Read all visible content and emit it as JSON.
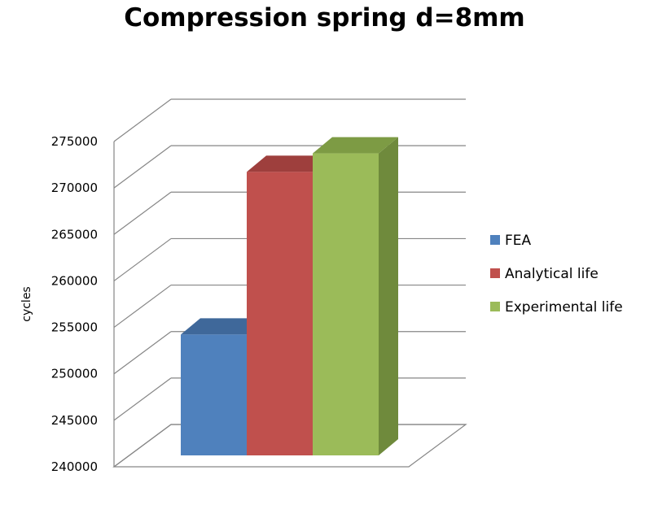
{
  "chart_data": {
    "type": "bar",
    "title": "Compression spring d=8mm",
    "ylabel": "cycles",
    "xlabel": "",
    "ylim": [
      240000,
      275000
    ],
    "yticks": [
      240000,
      245000,
      250000,
      255000,
      260000,
      265000,
      270000,
      275000
    ],
    "three_d": true,
    "grid": true,
    "legend_position": "right",
    "series": [
      {
        "name": "FEA",
        "value": 253000,
        "color": "#4F81BD",
        "side_color": "#385D8A",
        "top_color": "#3F689A"
      },
      {
        "name": "Analytical life",
        "value": 270500,
        "color": "#C0504D",
        "side_color": "#8C3836",
        "top_color": "#9E3F3D"
      },
      {
        "name": "Experimental life",
        "value": 272500,
        "color": "#9BBB59",
        "side_color": "#6F8A3C",
        "top_color": "#7D9B44"
      }
    ]
  }
}
